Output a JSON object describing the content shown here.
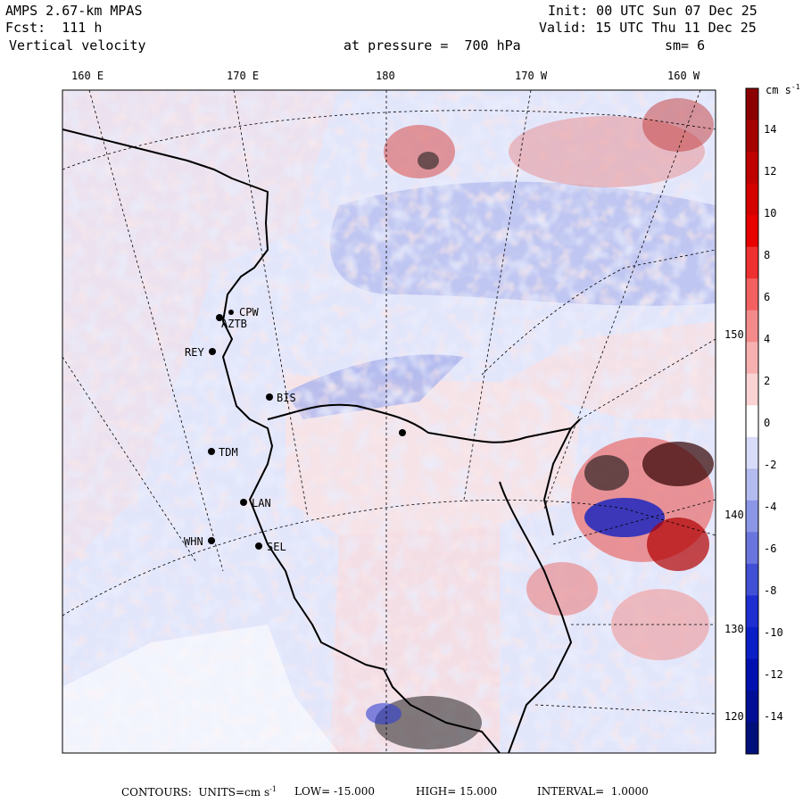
{
  "header": {
    "model": "AMPS 2.67-km MPAS",
    "forecast": "Fcst:  111 h",
    "field": "Vertical velocity",
    "init": "Init: 00 UTC Sun 07 Dec 25",
    "valid": "Valid: 15 UTC Thu 11 Dec 25",
    "pressure": "at pressure =  700 hPa",
    "smoothing": "sm= 6"
  },
  "map": {
    "longitude_labels": [
      "160 E",
      "170 E",
      "180",
      "170 W",
      "160 W"
    ],
    "latitude_labels": [
      "150 W",
      "140 W",
      "130 W",
      "120 W"
    ],
    "stations": [
      "CPW",
      "AZTB",
      "REY",
      "BIS",
      "TDM",
      "LAN",
      "WHN",
      "SEL"
    ]
  },
  "colorbar": {
    "unit": "cm s",
    "unit_exp": "-1",
    "labels": [
      "14",
      "12",
      "10",
      "8",
      "6",
      "4",
      "2",
      "0",
      "-2",
      "-4",
      "-6",
      "-8",
      "-10",
      "-12",
      "-14"
    ],
    "colors": [
      "#8b0000",
      "#a50000",
      "#bf0000",
      "#d40000",
      "#e60000",
      "#ef3030",
      "#f26060",
      "#f48a8a",
      "#f7b0b0",
      "#fad4d4",
      "#ffffff",
      "#d8dcf8",
      "#b4bcef",
      "#8c96e6",
      "#6a75dd",
      "#4150d4",
      "#1e2ed0",
      "#0b1fc6",
      "#0010b0",
      "#000f96",
      "#00107a"
    ]
  },
  "footer": {
    "contours_label": "CONTOURS:  UNITS=cm s",
    "unit_exp": "-1",
    "low": "LOW= -15.000",
    "high": "HIGH= 15.000",
    "interval": "INTERVAL=  1.0000"
  }
}
